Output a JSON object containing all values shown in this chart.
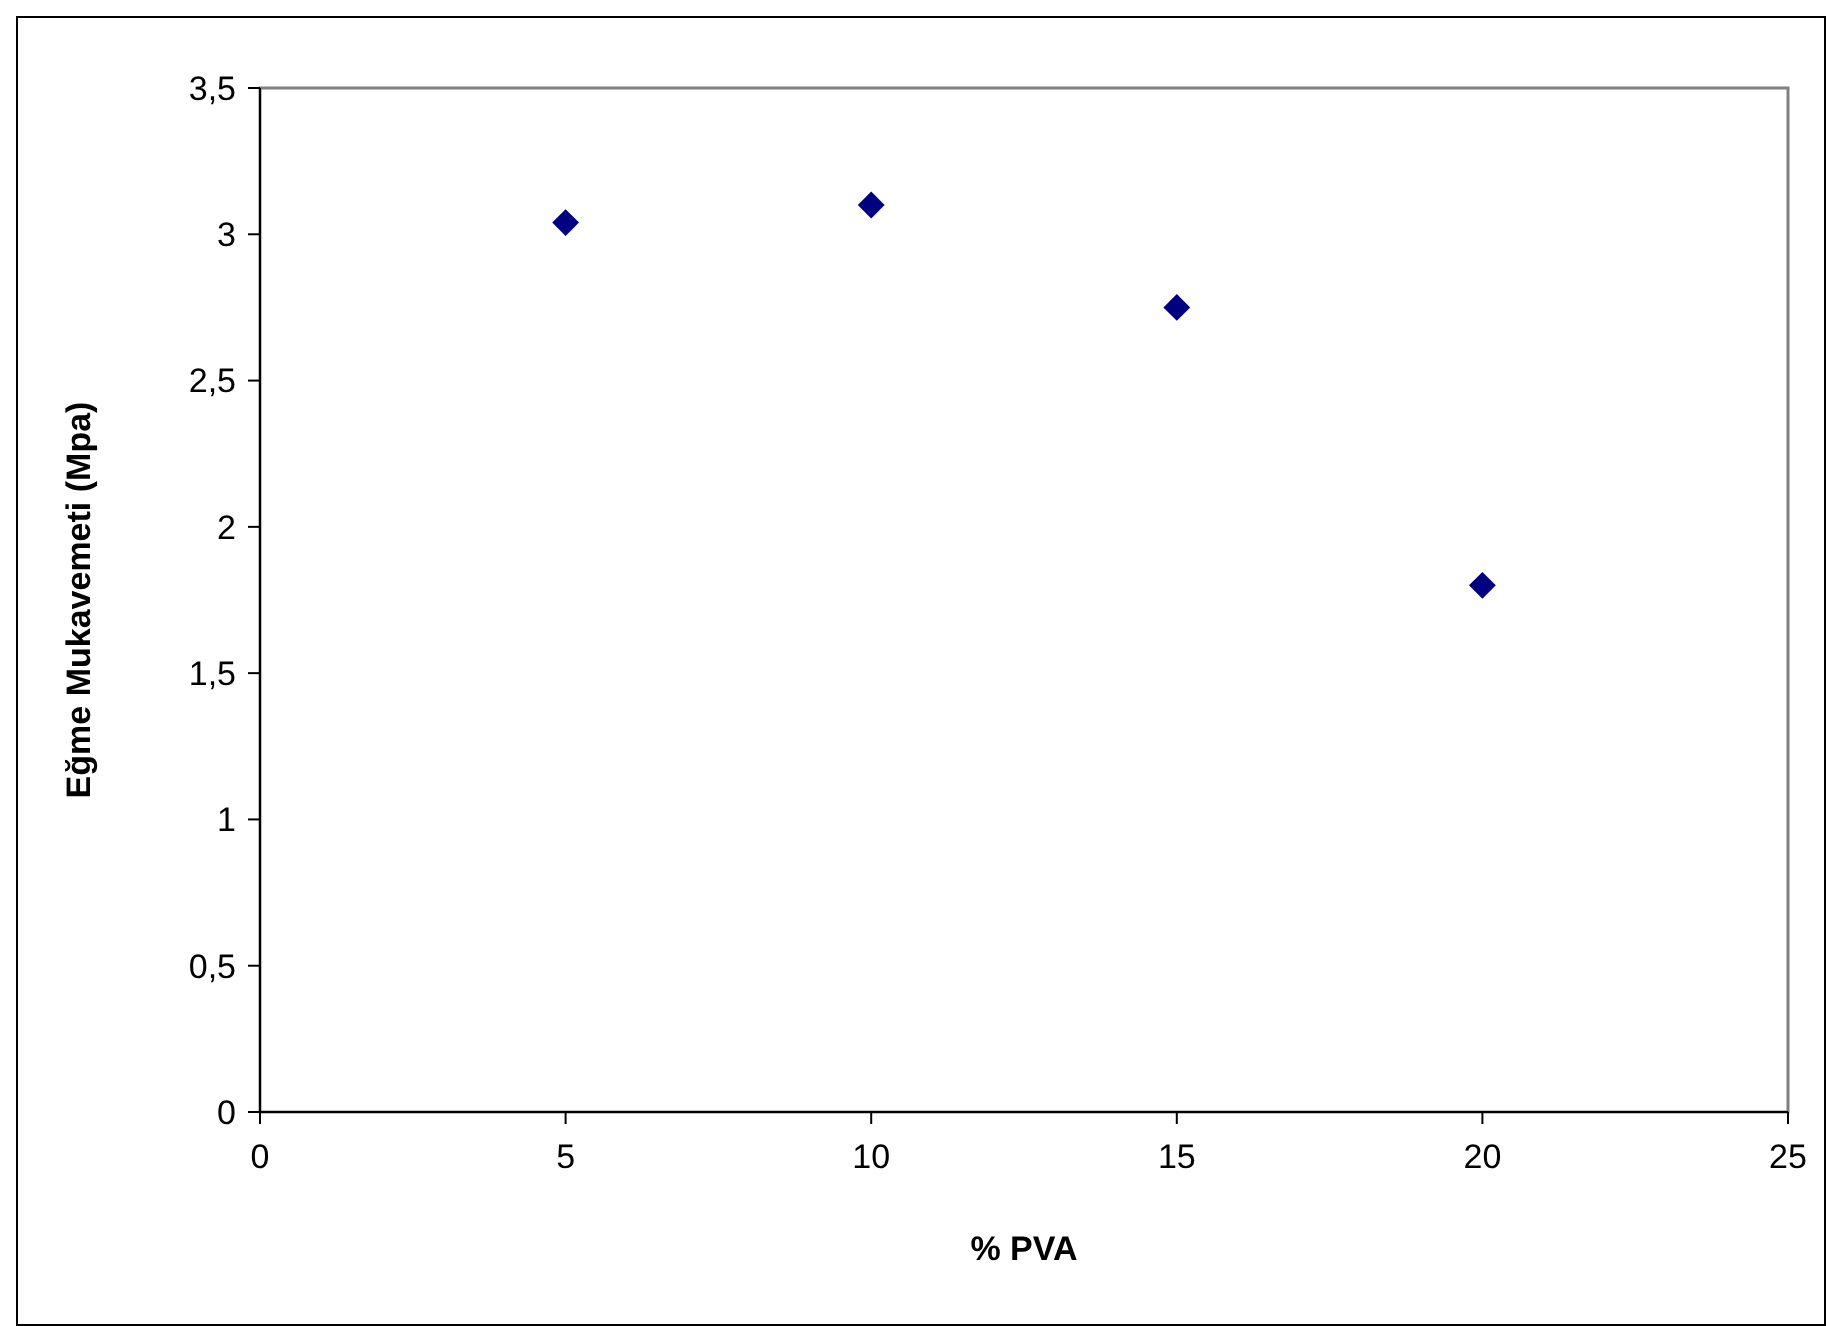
{
  "chart_data": {
    "type": "scatter",
    "xlabel": "% PVA",
    "ylabel": "Eğme Mukavemeti (Mpa)",
    "x": [
      5,
      10,
      15,
      20
    ],
    "series": [
      {
        "color": "#000080",
        "values": [
          3.04,
          3.1,
          2.75,
          1.8
        ]
      }
    ],
    "xlim": [
      0,
      25
    ],
    "xticks": [
      0,
      5,
      10,
      15,
      20,
      25
    ],
    "ylim": [
      0,
      3.5
    ],
    "yticks": [
      0,
      {
        "value": 0.5,
        "label": "0,5"
      },
      1,
      {
        "value": 1.5,
        "label": "1,5"
      },
      2,
      {
        "value": 2.5,
        "label": "2,5"
      },
      3,
      {
        "value": 3.5,
        "label": "3,5"
      }
    ],
    "marker": "diamond"
  }
}
